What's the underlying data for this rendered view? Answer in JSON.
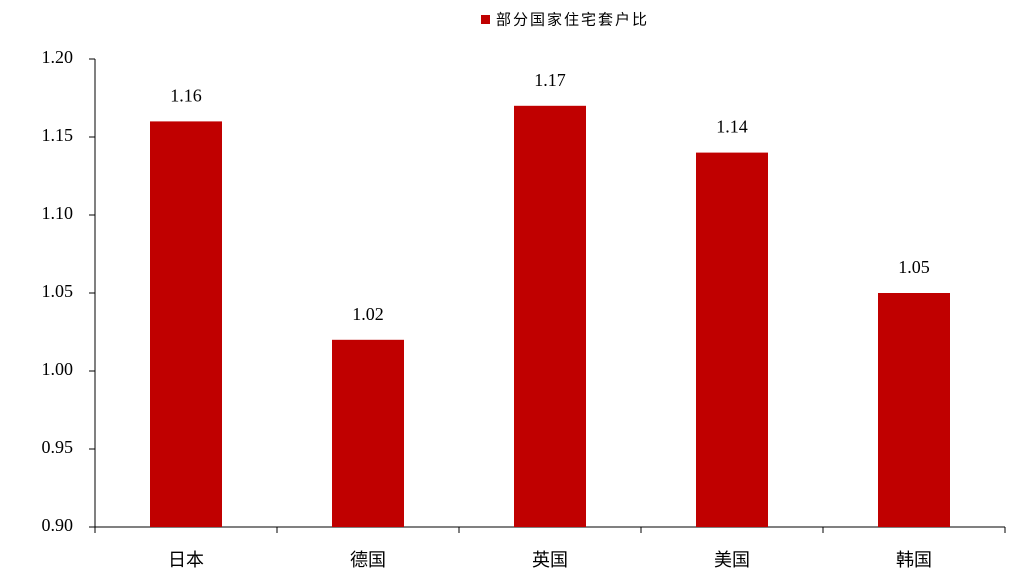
{
  "chart_data": {
    "type": "bar",
    "series": [
      {
        "name": "部分国家住宅套户比",
        "color": "#c00000",
        "values": [
          1.16,
          1.02,
          1.17,
          1.14,
          1.05
        ]
      }
    ],
    "categories": [
      "日本",
      "德国",
      "英国",
      "美国",
      "韩国"
    ],
    "ylim": [
      0.9,
      1.2
    ],
    "yticks": [
      {
        "value": 0.9,
        "label": "0.90"
      },
      0.95,
      {
        "value": 1.0,
        "label": "1.00"
      },
      1.05,
      {
        "value": 1.1,
        "label": "1.10"
      },
      1.15,
      {
        "value": 1.2,
        "label": "1.20"
      }
    ],
    "grid": false,
    "legend": "top"
  }
}
